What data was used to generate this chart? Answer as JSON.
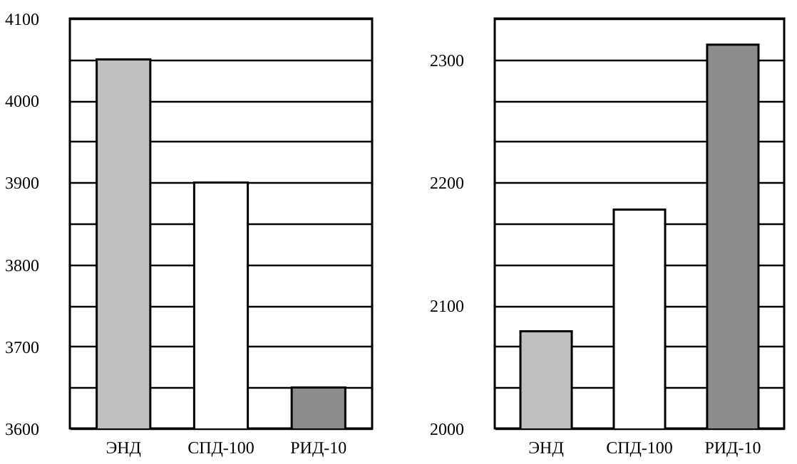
{
  "chart_data": [
    {
      "type": "bar",
      "categories": [
        "ЭНД",
        "СПД-100",
        "РИД-10"
      ],
      "values": [
        4050,
        3900,
        3650
      ],
      "colors": [
        "#c0c0c0",
        "#ffffff",
        "#8c8c8c"
      ],
      "ylim": [
        3600,
        4100
      ],
      "yticks": [
        3600,
        {
          "value": 3650,
          "label": null
        },
        3700,
        {
          "value": 3750,
          "label": null
        },
        3800,
        {
          "value": 3850,
          "label": null
        },
        3900,
        {
          "value": 3950,
          "label": null
        },
        4000,
        {
          "value": 4050,
          "label": null
        },
        4100
      ],
      "grid": "y"
    },
    {
      "type": "bar",
      "categories": [
        "ЭНД",
        "СПД-100",
        "РИД-10"
      ],
      "values": [
        2079,
        2178,
        2312
      ],
      "colors": [
        "#c0c0c0",
        "#ffffff",
        "#8c8c8c"
      ],
      "ylim": [
        2000,
        2333.3
      ],
      "yticks": [
        2000,
        {
          "value": 2033.3,
          "label": null
        },
        {
          "value": 2066.7,
          "label": null
        },
        2100,
        {
          "value": 2133.3,
          "label": null
        },
        {
          "value": 2166.7,
          "label": null
        },
        2200,
        {
          "value": 2233.3,
          "label": null
        },
        {
          "value": 2266.7,
          "label": null
        },
        2300,
        {
          "value": 2333.3,
          "label": null
        }
      ],
      "grid": "y"
    }
  ]
}
